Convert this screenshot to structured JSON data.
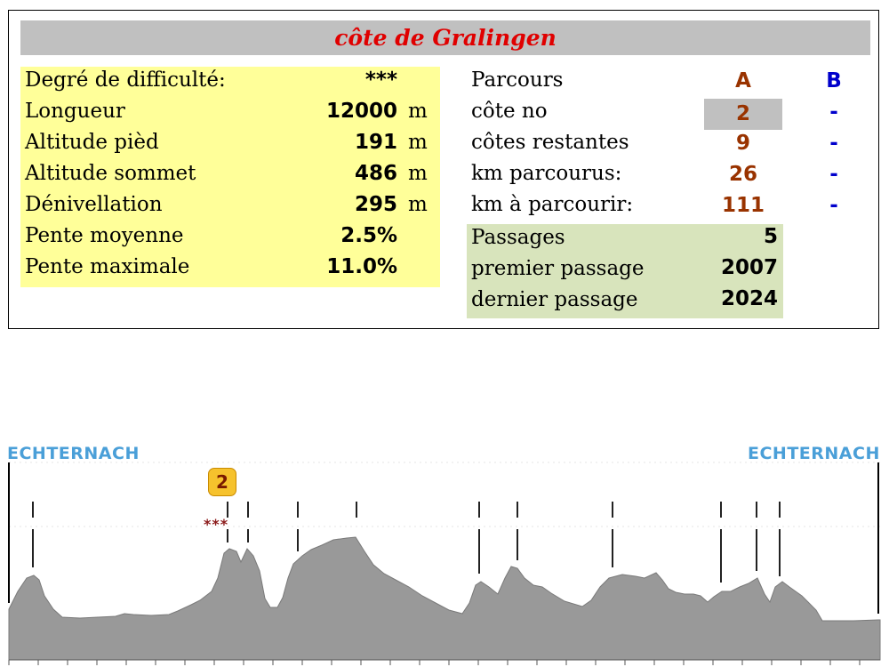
{
  "title": "côte de Gralingen",
  "stats": [
    {
      "label": "Degré de difficulté:",
      "value": "***",
      "unit": ""
    },
    {
      "label": "Longueur",
      "value": "12000",
      "unit": "m"
    },
    {
      "label": "Altitude pièd",
      "value": "191",
      "unit": "m"
    },
    {
      "label": "Altitude sommet",
      "value": "486",
      "unit": "m"
    },
    {
      "label": "Dénivellation",
      "value": "295",
      "unit": "m"
    },
    {
      "label": "Pente moyenne",
      "value": "2.5%",
      "unit": ""
    },
    {
      "label": "Pente maximale",
      "value": "11.0%",
      "unit": ""
    }
  ],
  "parcours": {
    "header": {
      "label": "Parcours",
      "a": "A",
      "b": "B"
    },
    "rows": [
      {
        "label": "côte no",
        "a": "2",
        "b": "-"
      },
      {
        "label": "côtes restantes",
        "a": "9",
        "b": "-"
      },
      {
        "label": "km parcourus:",
        "a": "26",
        "b": "-"
      },
      {
        "label": "km à parcourir:",
        "a": "111",
        "b": "-"
      }
    ]
  },
  "passages": [
    {
      "label": "Passages",
      "value": "5"
    },
    {
      "label": "premier passage",
      "value": "2007"
    },
    {
      "label": "dernier passage",
      "value": "2024"
    }
  ],
  "profile": {
    "start": "ECHTERNACH",
    "end": "ECHTERNACH",
    "climb_badge": "2",
    "climb_stars": "***"
  },
  "colors": {
    "title": "#e00000",
    "left_panel": "#ffff99",
    "green_panel": "#d8e4bc",
    "col_a": "#993300",
    "col_b": "#0000cc",
    "profile_fill": "#999999",
    "place_label": "#4a9fd8",
    "badge": "#f6c22d"
  }
}
